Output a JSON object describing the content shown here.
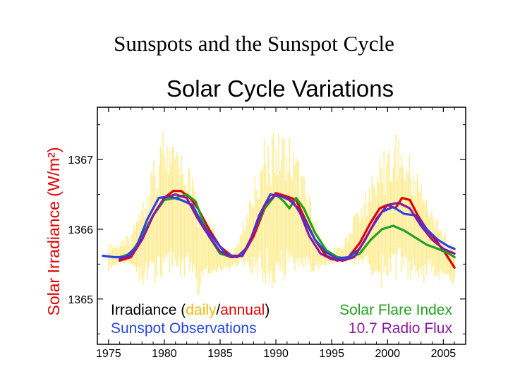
{
  "slide": {
    "title": "Sunspots and the Sunspot Cycle"
  },
  "chart_data": {
    "type": "line",
    "title": "Solar Cycle Variations",
    "xlabel": "",
    "ylabel": "Solar Irradiance (W/m²)",
    "xlim": [
      1974,
      2007
    ],
    "ylim": [
      1364.35,
      1367.75
    ],
    "x_ticks": [
      1975,
      1980,
      1985,
      1990,
      1995,
      2000,
      2005
    ],
    "y_ticks": [
      1365,
      1366,
      1367
    ],
    "x_tick_labels": [
      "1975",
      "1980",
      "1985",
      "1990",
      "1995",
      "2000",
      "2005"
    ],
    "y_tick_labels": [
      "1365",
      "1366",
      "1367"
    ],
    "grid": false,
    "legend": {
      "left": [
        {
          "parts": [
            {
              "text": "Irradiance (",
              "color": "#000000"
            },
            {
              "text": "daily",
              "color": "#f5b800"
            },
            {
              "text": "/",
              "color": "#000000"
            },
            {
              "text": "annual",
              "color": "#e00000"
            },
            {
              "text": ")",
              "color": "#000000"
            }
          ]
        },
        {
          "parts": [
            {
              "text": "Sunspot Observations",
              "color": "#2a45e0"
            }
          ]
        }
      ],
      "right": [
        {
          "parts": [
            {
              "text": "Solar Flare Index",
              "color": "#22a022"
            }
          ]
        },
        {
          "parts": [
            {
              "text": "10.7 Radio Flux",
              "color": "#8a1aa0"
            }
          ]
        }
      ]
    },
    "daily_band": {
      "name": "daily",
      "color": "#ffe566",
      "x": [
        1975,
        1976,
        1977,
        1978,
        1979,
        1980,
        1981,
        1982,
        1983,
        1984,
        1985,
        1986,
        1987,
        1988,
        1989,
        1990,
        1991,
        1992,
        1993,
        1994,
        1995,
        1996,
        1997,
        1998,
        1999,
        2000,
        2001,
        2002,
        2003,
        2004,
        2005,
        2006
      ],
      "low": [
        1365.4,
        1365.5,
        1365.4,
        1365.2,
        1365.1,
        1365.2,
        1365.3,
        1365.3,
        1365.0,
        1365.3,
        1365.4,
        1365.4,
        1365.5,
        1365.3,
        1365.2,
        1365.1,
        1365.2,
        1365.3,
        1365.3,
        1365.4,
        1365.5,
        1365.5,
        1365.5,
        1365.3,
        1365.3,
        1365.0,
        1365.2,
        1365.1,
        1365.2,
        1365.3,
        1365.2,
        1365.2
      ],
      "high": [
        1365.8,
        1365.8,
        1366.0,
        1366.6,
        1367.1,
        1367.5,
        1367.2,
        1367.1,
        1366.4,
        1366.2,
        1365.8,
        1365.7,
        1366.1,
        1366.8,
        1367.4,
        1367.4,
        1367.5,
        1367.1,
        1366.5,
        1365.9,
        1365.7,
        1365.8,
        1366.2,
        1366.6,
        1367.0,
        1367.3,
        1367.4,
        1367.1,
        1366.9,
        1366.3,
        1366.0,
        1365.8
      ]
    },
    "series": [
      {
        "name": "annual",
        "color": "#e00000",
        "x": [
          1976,
          1977,
          1978,
          1979,
          1980,
          1980.8,
          1981.5,
          1982.3,
          1983,
          1984,
          1985,
          1986,
          1987,
          1988,
          1989,
          1990,
          1991,
          1991.8,
          1992.6,
          1993.5,
          1994.5,
          1995.5,
          1996.5,
          1997.5,
          1998.5,
          1999.3,
          2000,
          2000.7,
          2001.3,
          2002,
          2002.7,
          2003.5,
          2004.3,
          2005.2,
          2006
        ],
        "y": [
          1365.55,
          1365.6,
          1365.85,
          1366.2,
          1366.45,
          1366.55,
          1366.55,
          1366.45,
          1366.3,
          1366.0,
          1365.75,
          1365.62,
          1365.62,
          1365.9,
          1366.3,
          1366.52,
          1366.47,
          1366.42,
          1366.15,
          1365.85,
          1365.62,
          1365.55,
          1365.6,
          1365.8,
          1366.1,
          1366.3,
          1366.35,
          1366.3,
          1366.45,
          1366.42,
          1366.2,
          1366.0,
          1365.85,
          1365.65,
          1365.45
        ]
      },
      {
        "name": "Solar Flare Index",
        "color": "#22a022",
        "x": [
          1976,
          1977,
          1978,
          1979,
          1980,
          1981,
          1982,
          1982.8,
          1983.5,
          1984,
          1985,
          1986,
          1987,
          1988,
          1989,
          1990,
          1990.7,
          1991.2,
          1991.8,
          1992.5,
          1993.5,
          1994.5,
          1995.5,
          1996.5,
          1997.5,
          1998.5,
          1999.5,
          2000.5,
          2001.5,
          2002.5,
          2003.5,
          2004.5,
          2005.5,
          2006
        ],
        "y": [
          1365.6,
          1365.65,
          1365.9,
          1366.2,
          1366.42,
          1366.45,
          1366.5,
          1366.4,
          1366.1,
          1365.9,
          1365.65,
          1365.6,
          1365.62,
          1365.95,
          1366.3,
          1366.5,
          1366.4,
          1366.3,
          1366.45,
          1366.3,
          1365.95,
          1365.7,
          1365.6,
          1365.58,
          1365.65,
          1365.85,
          1366.0,
          1366.05,
          1365.98,
          1365.88,
          1365.78,
          1365.72,
          1365.65,
          1365.6
        ]
      },
      {
        "name": "Sunspot Observations",
        "color": "#2a45e0",
        "x": [
          1974.5,
          1975.5,
          1976.5,
          1977.5,
          1978.5,
          1979.5,
          1980.5,
          1981.5,
          1982.5,
          1983.5,
          1984.5,
          1985.5,
          1986.5,
          1987.5,
          1988.5,
          1989.5,
          1990.5,
          1991.5,
          1992.5,
          1993.5,
          1994.5,
          1995.5,
          1996.5,
          1997.5,
          1998.5,
          1999.5,
          2000.5,
          2001.5,
          2002.5,
          2003.5,
          2004.5,
          2005.5,
          2006
        ],
        "y": [
          1365.62,
          1365.6,
          1365.6,
          1365.75,
          1366.15,
          1366.45,
          1366.47,
          1366.42,
          1366.35,
          1366.05,
          1365.85,
          1365.65,
          1365.6,
          1365.75,
          1366.2,
          1366.5,
          1366.47,
          1366.4,
          1366.15,
          1365.85,
          1365.67,
          1365.58,
          1365.6,
          1365.72,
          1366.0,
          1366.25,
          1366.32,
          1366.22,
          1366.2,
          1366.0,
          1365.85,
          1365.75,
          1365.72
        ]
      },
      {
        "name": "10.7 Radio Flux",
        "color": "#8a1aa0",
        "x": [
          1976,
          1977,
          1978,
          1979,
          1980,
          1981,
          1982,
          1983,
          1984,
          1985,
          1986,
          1987,
          1988,
          1989,
          1990,
          1991,
          1992,
          1993,
          1994,
          1995,
          1996,
          1997,
          1998,
          1999,
          2000,
          2001,
          2002,
          2003,
          2004,
          2005,
          2006
        ],
        "y": [
          1365.57,
          1365.62,
          1365.85,
          1366.2,
          1366.45,
          1366.5,
          1366.45,
          1366.15,
          1365.9,
          1365.68,
          1365.6,
          1365.62,
          1365.95,
          1366.35,
          1366.5,
          1366.45,
          1366.3,
          1365.9,
          1365.65,
          1365.57,
          1365.55,
          1365.6,
          1365.85,
          1366.15,
          1366.35,
          1366.38,
          1366.3,
          1366.05,
          1365.85,
          1365.72,
          1365.65
        ]
      }
    ]
  }
}
